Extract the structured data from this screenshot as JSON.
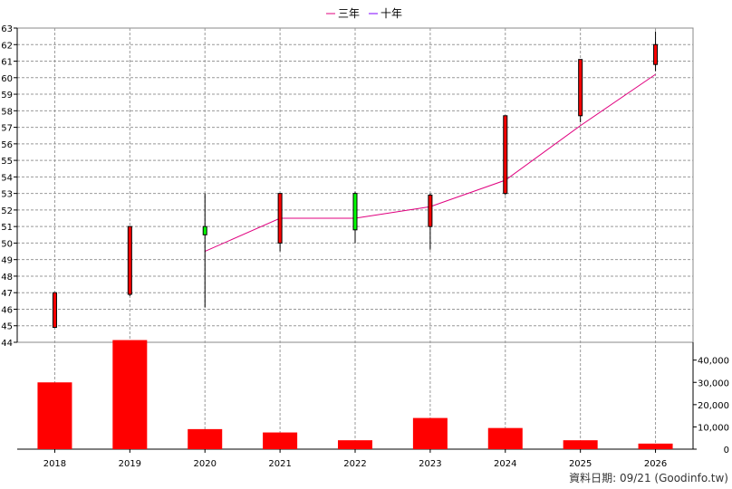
{
  "chart_data": [
    {
      "type": "candlestick",
      "legend": {
        "position": "top-center",
        "items": [
          {
            "name": "三年",
            "color": "#e0007f"
          },
          {
            "name": "十年",
            "color": "#7f00ff"
          }
        ]
      },
      "x": [
        "2018",
        "2019",
        "2020",
        "2021",
        "2022",
        "2023",
        "2024",
        "2025",
        "2026"
      ],
      "ylim": [
        44,
        63
      ],
      "yticks": [
        44,
        45,
        46,
        47,
        48,
        49,
        50,
        51,
        52,
        53,
        54,
        55,
        56,
        57,
        58,
        59,
        60,
        61,
        62,
        63
      ],
      "grid": true,
      "candles": [
        {
          "x": "2018",
          "open": 47.0,
          "close": 44.9,
          "high": 47.0,
          "low": 44.9
        },
        {
          "x": "2019",
          "open": 51.0,
          "close": 46.9,
          "high": 51.0,
          "low": 46.8
        },
        {
          "x": "2020",
          "open": 50.5,
          "close": 51.0,
          "high": 53.0,
          "low": 46.1
        },
        {
          "x": "2021",
          "open": 53.0,
          "close": 50.0,
          "high": 53.0,
          "low": 49.5
        },
        {
          "x": "2022",
          "open": 50.8,
          "close": 53.0,
          "high": 53.1,
          "low": 50.0
        },
        {
          "x": "2023",
          "open": 52.9,
          "close": 51.0,
          "high": 53.0,
          "low": 49.6
        },
        {
          "x": "2024",
          "open": 57.7,
          "close": 53.0,
          "high": 57.7,
          "low": 52.9
        },
        {
          "x": "2025",
          "open": 61.1,
          "close": 57.7,
          "high": 61.1,
          "low": 57.3
        },
        {
          "x": "2026",
          "open": 62.0,
          "close": 60.8,
          "high": 62.8,
          "low": 60.4
        }
      ],
      "series": [
        {
          "name": "三年",
          "color": "#e0007f",
          "x": [
            "2020",
            "2021",
            "2022",
            "2023",
            "2024",
            "2025",
            "2026"
          ],
          "values": [
            49.5,
            51.5,
            51.5,
            52.2,
            53.8,
            57.1,
            60.2
          ]
        }
      ]
    },
    {
      "type": "bar",
      "categories": [
        "2018",
        "2019",
        "2020",
        "2021",
        "2022",
        "2023",
        "2024",
        "2025",
        "2026"
      ],
      "values": [
        30000,
        49000,
        9000,
        7500,
        4000,
        14000,
        9500,
        4000,
        2500
      ],
      "color": "#ff0000",
      "ylim": [
        0,
        48000
      ],
      "ytick_labels": [
        "0",
        "10,000",
        "20,000",
        "30,000",
        "40,000"
      ],
      "yticks": [
        0,
        10000,
        20000,
        30000,
        40000
      ],
      "y_axis_side": "right",
      "grid": false
    }
  ],
  "footer": {
    "text": "資料日期: 09/21 (Goodinfo.tw)"
  }
}
